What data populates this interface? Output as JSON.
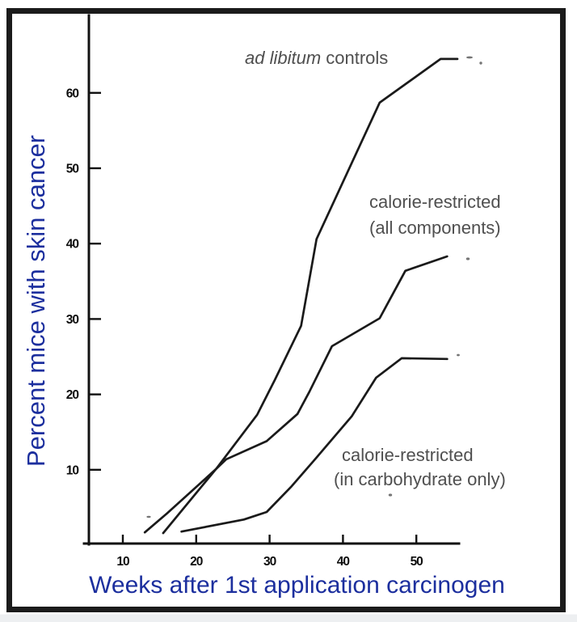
{
  "figure": {
    "y_axis_label": "Percent mice with skin cancer",
    "x_axis_label": "Weeks after 1st application carcinogen",
    "label_color": "#1c2f9e",
    "line_color": "#1a1a1a",
    "annotation_color": "#4f4f4f"
  },
  "chart_data": {
    "type": "line",
    "title": "",
    "xlabel": "Weeks after 1st application carcinogen",
    "ylabel": "Percent mice with skin cancer",
    "xlim": [
      5,
      56
    ],
    "ylim": [
      0,
      70
    ],
    "x_ticks": [
      10,
      20,
      30,
      40,
      50
    ],
    "y_ticks": [
      10,
      20,
      30,
      40,
      50,
      60
    ],
    "grid": false,
    "legend": "inline-annotations",
    "series": [
      {
        "name": "ad libitum controls",
        "points": [
          [
            13,
            1.7
          ],
          [
            16,
            4.2
          ],
          [
            22.7,
            10.1
          ],
          [
            28.3,
            17.3
          ],
          [
            30.7,
            21.9
          ],
          [
            34.3,
            29.1
          ],
          [
            36.4,
            40.6
          ],
          [
            45,
            58.7
          ],
          [
            53.3,
            64.5
          ],
          [
            55.6,
            64.5
          ]
        ]
      },
      {
        "name": "calorie-restricted (all components)",
        "points": [
          [
            15.5,
            1.6
          ],
          [
            22.7,
            10.1
          ],
          [
            24.1,
            11.4
          ],
          [
            29.6,
            13.8
          ],
          [
            33.8,
            17.4
          ],
          [
            35.4,
            20.3
          ],
          [
            38.5,
            26.4
          ],
          [
            45,
            30.1
          ],
          [
            48.5,
            36.4
          ],
          [
            54.2,
            38.3
          ]
        ]
      },
      {
        "name": "calorie-restricted (in carbohydrate only)",
        "points": [
          [
            18,
            1.8
          ],
          [
            26.5,
            3.4
          ],
          [
            29.6,
            4.4
          ],
          [
            32.9,
            7.7
          ],
          [
            36.2,
            11.4
          ],
          [
            41.2,
            17.1
          ],
          [
            44.5,
            22.2
          ],
          [
            48,
            24.8
          ],
          [
            54.2,
            24.7
          ]
        ]
      }
    ],
    "annotations": [
      {
        "italic": "ad libitum",
        "rest": " controls"
      },
      {
        "lines": [
          "calorie-restricted",
          "(all components)"
        ]
      },
      {
        "lines": [
          "calorie-restricted",
          "(in carbohydrate only)"
        ]
      }
    ]
  }
}
